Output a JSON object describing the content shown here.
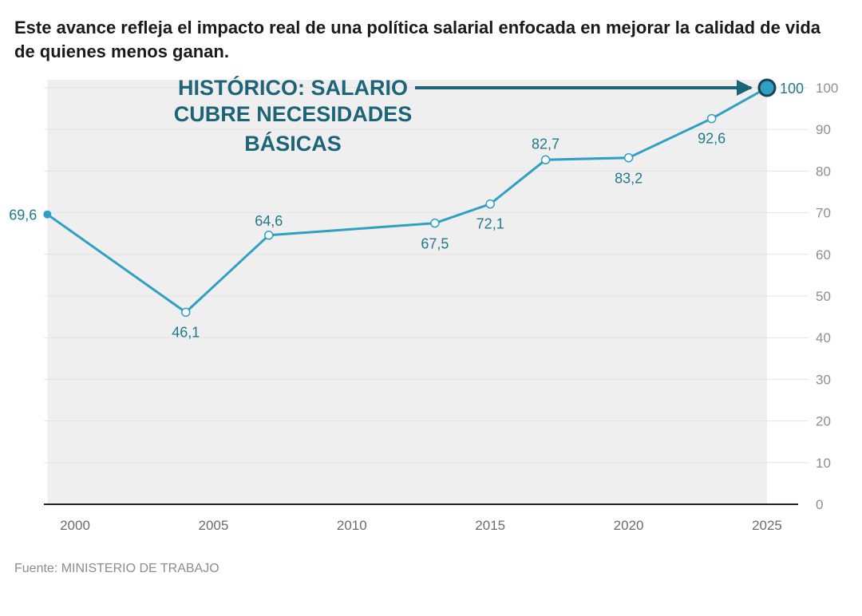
{
  "title": "Este avance refleja el impacto real de una política salarial enfocada en mejorar la calidad de vida de quienes menos ganan.",
  "source": "Fuente: MINISTERIO DE TRABAJO",
  "colors": {
    "line": "#2f9fc2",
    "label": "#1f7a8c",
    "annotation": "#1d6478",
    "area": "#efefef"
  },
  "chart_data": {
    "type": "line",
    "title": "",
    "xlabel": "",
    "ylabel": "",
    "x": [
      1999,
      2004,
      2007,
      2013,
      2015,
      2017,
      2020,
      2023,
      2025
    ],
    "values": [
      69.6,
      46.1,
      64.6,
      67.5,
      72.1,
      82.7,
      83.2,
      92.6,
      100
    ],
    "data_labels": [
      "69,6",
      "46,1",
      "64,6",
      "67,5",
      "72,1",
      "82,7",
      "83,2",
      "92,6",
      "100"
    ],
    "x_ticks": [
      "2000",
      "2005",
      "2010",
      "2015",
      "2020",
      "2025"
    ],
    "y_ticks": [
      "0",
      "10",
      "20",
      "30",
      "40",
      "50",
      "60",
      "70",
      "80",
      "90",
      "100"
    ],
    "xlim": [
      1998.5,
      2026.5
    ],
    "ylim": [
      0,
      100
    ],
    "y_axis_position": "right",
    "grid": true,
    "annotation": {
      "lines": [
        "HISTÓRICO: SALARIO",
        "CUBRE NECESIDADES",
        "BÁSICAS"
      ],
      "points_to": "100"
    }
  }
}
